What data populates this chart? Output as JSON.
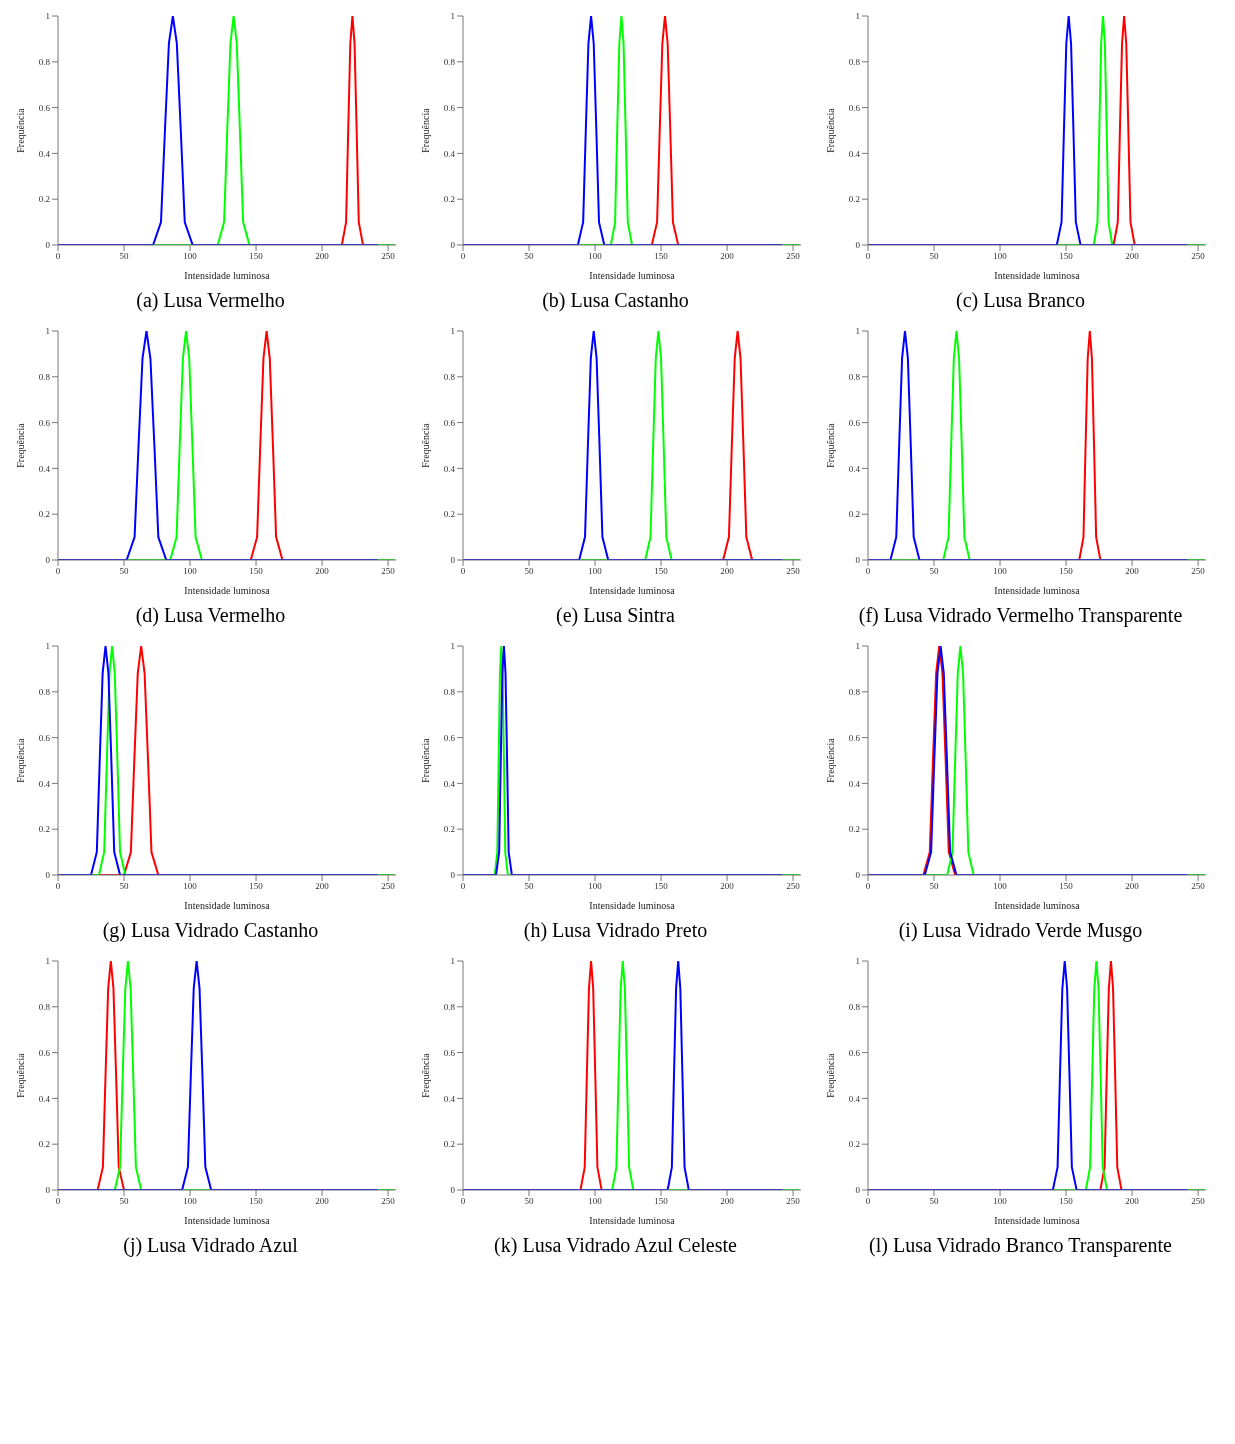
{
  "chart_data": [
    {
      "type": "line",
      "title": "(a) Lusa Vermelho",
      "xlabel": "Intensidade luminosa",
      "ylabel": "Frequência",
      "xlim": [
        0,
        256
      ],
      "xticks": [
        0,
        50,
        100,
        150,
        200,
        250
      ],
      "ylim": [
        0,
        1
      ],
      "yticks": [
        0,
        0.2,
        0.4,
        0.6,
        0.8,
        1
      ],
      "grid": false,
      "legend": false,
      "marker": "none",
      "line_style": "solid",
      "series": [
        {
          "color": "#ff0000",
          "x": [
            0,
            215,
            218.2,
            219.8,
            221.4,
            223,
            224.6,
            226.2,
            227.8,
            231,
            242
          ],
          "values": [
            0,
            0,
            0.1,
            0.5,
            0.88,
            1,
            0.88,
            0.5,
            0.1,
            0,
            0
          ]
        },
        {
          "color": "#00ff00",
          "x": [
            0,
            121,
            125.8,
            128.2,
            130.6,
            133,
            135.4,
            137.8,
            140.2,
            145,
            255
          ],
          "values": [
            0,
            0,
            0.1,
            0.5,
            0.88,
            1,
            0.88,
            0.5,
            0.1,
            0,
            0
          ]
        },
        {
          "color": "#0000ff",
          "x": [
            0,
            72,
            78,
            81,
            84,
            87,
            90,
            93,
            96,
            102,
            242
          ],
          "values": [
            0,
            0,
            0.1,
            0.5,
            0.88,
            1,
            0.88,
            0.5,
            0.1,
            0,
            0
          ]
        }
      ]
    },
    {
      "type": "line",
      "title": "(b) Lusa Castanho",
      "xlabel": "Intensidade luminosa",
      "ylabel": "Frequência",
      "xlim": [
        0,
        256
      ],
      "xticks": [
        0,
        50,
        100,
        150,
        200,
        250
      ],
      "ylim": [
        0,
        1
      ],
      "yticks": [
        0,
        0.2,
        0.4,
        0.6,
        0.8,
        1
      ],
      "grid": false,
      "legend": false,
      "marker": "none",
      "line_style": "solid",
      "series": [
        {
          "color": "#ff0000",
          "x": [
            0,
            143,
            147,
            149,
            151,
            153,
            155,
            157,
            159,
            163,
            242
          ],
          "values": [
            0,
            0,
            0.1,
            0.5,
            0.88,
            1,
            0.88,
            0.5,
            0.1,
            0,
            0
          ]
        },
        {
          "color": "#00ff00",
          "x": [
            0,
            112,
            115.2,
            116.8,
            118.4,
            120,
            121.6,
            123.2,
            124.8,
            128,
            255
          ],
          "values": [
            0,
            0,
            0.1,
            0.5,
            0.88,
            1,
            0.88,
            0.5,
            0.1,
            0,
            0
          ]
        },
        {
          "color": "#0000ff",
          "x": [
            0,
            87,
            91,
            93,
            95,
            97,
            99,
            101,
            103,
            107,
            242
          ],
          "values": [
            0,
            0,
            0.1,
            0.5,
            0.88,
            1,
            0.88,
            0.5,
            0.1,
            0,
            0
          ]
        }
      ]
    },
    {
      "type": "line",
      "title": "(c) Lusa Branco",
      "xlabel": "Intensidade luminosa",
      "ylabel": "Frequência",
      "xlim": [
        0,
        256
      ],
      "xticks": [
        0,
        50,
        100,
        150,
        200,
        250
      ],
      "ylim": [
        0,
        1
      ],
      "yticks": [
        0,
        0.2,
        0.4,
        0.6,
        0.8,
        1
      ],
      "grid": false,
      "legend": false,
      "marker": "none",
      "line_style": "solid",
      "series": [
        {
          "color": "#ff0000",
          "x": [
            0,
            186,
            189.2,
            190.8,
            192.4,
            194,
            195.6,
            197.2,
            198.8,
            202,
            242
          ],
          "values": [
            0,
            0,
            0.1,
            0.5,
            0.88,
            1,
            0.88,
            0.5,
            0.1,
            0,
            0
          ]
        },
        {
          "color": "#00ff00",
          "x": [
            0,
            171,
            173.8,
            175.2,
            176.6,
            178,
            179.4,
            180.8,
            182.2,
            185,
            255
          ],
          "values": [
            0,
            0,
            0.1,
            0.5,
            0.88,
            1,
            0.88,
            0.5,
            0.1,
            0,
            0
          ]
        },
        {
          "color": "#0000ff",
          "x": [
            0,
            143,
            146.6,
            148.4,
            150.2,
            152,
            153.8,
            155.6,
            157.4,
            161,
            242
          ],
          "values": [
            0,
            0,
            0.1,
            0.5,
            0.88,
            1,
            0.88,
            0.5,
            0.1,
            0,
            0
          ]
        }
      ]
    },
    {
      "type": "line",
      "title": "(d) Lusa Vermelho",
      "xlabel": "Intensidade luminosa",
      "ylabel": "Frequência",
      "xlim": [
        0,
        256
      ],
      "xticks": [
        0,
        50,
        100,
        150,
        200,
        250
      ],
      "ylim": [
        0,
        1
      ],
      "yticks": [
        0,
        0.2,
        0.4,
        0.6,
        0.8,
        1
      ],
      "grid": false,
      "legend": false,
      "marker": "none",
      "line_style": "solid",
      "series": [
        {
          "color": "#ff0000",
          "x": [
            0,
            146,
            150.8,
            153.2,
            155.6,
            158,
            160.4,
            162.8,
            165.2,
            170,
            242
          ],
          "values": [
            0,
            0,
            0.1,
            0.5,
            0.88,
            1,
            0.88,
            0.5,
            0.1,
            0,
            0
          ]
        },
        {
          "color": "#00ff00",
          "x": [
            0,
            85,
            89.8,
            92.2,
            94.6,
            97,
            99.4,
            101.8,
            104.2,
            109,
            255
          ],
          "values": [
            0,
            0,
            0.1,
            0.5,
            0.88,
            1,
            0.88,
            0.5,
            0.1,
            0,
            0
          ]
        },
        {
          "color": "#0000ff",
          "x": [
            0,
            52,
            58,
            61,
            64,
            67,
            70,
            73,
            76,
            82,
            242
          ],
          "values": [
            0,
            0,
            0.1,
            0.5,
            0.88,
            1,
            0.88,
            0.5,
            0.1,
            0,
            0
          ]
        }
      ]
    },
    {
      "type": "line",
      "title": "(e) Lusa Sintra",
      "xlabel": "Intensidade luminosa",
      "ylabel": "Frequência",
      "xlim": [
        0,
        256
      ],
      "xticks": [
        0,
        50,
        100,
        150,
        200,
        250
      ],
      "ylim": [
        0,
        1
      ],
      "yticks": [
        0,
        0.2,
        0.4,
        0.6,
        0.8,
        1
      ],
      "grid": false,
      "legend": false,
      "marker": "none",
      "line_style": "solid",
      "series": [
        {
          "color": "#ff0000",
          "x": [
            0,
            197,
            201.4,
            203.6,
            205.8,
            208,
            210.2,
            212.4,
            214.6,
            219,
            242
          ],
          "values": [
            0,
            0,
            0.1,
            0.5,
            0.88,
            1,
            0.88,
            0.5,
            0.1,
            0,
            0
          ]
        },
        {
          "color": "#00ff00",
          "x": [
            0,
            138,
            142,
            144,
            146,
            148,
            150,
            152,
            154,
            158,
            255
          ],
          "values": [
            0,
            0,
            0.1,
            0.5,
            0.88,
            1,
            0.88,
            0.5,
            0.1,
            0,
            0
          ]
        },
        {
          "color": "#0000ff",
          "x": [
            0,
            88,
            92.4,
            94.6,
            96.8,
            99,
            101.2,
            103.4,
            105.6,
            110,
            242
          ],
          "values": [
            0,
            0,
            0.1,
            0.5,
            0.88,
            1,
            0.88,
            0.5,
            0.1,
            0,
            0
          ]
        }
      ]
    },
    {
      "type": "line",
      "title": "(f) Lusa Vidrado Vermelho Transparente",
      "xlabel": "Intensidade luminosa",
      "ylabel": "Frequência",
      "xlim": [
        0,
        256
      ],
      "xticks": [
        0,
        50,
        100,
        150,
        200,
        250
      ],
      "ylim": [
        0,
        1
      ],
      "yticks": [
        0,
        0.2,
        0.4,
        0.6,
        0.8,
        1
      ],
      "grid": false,
      "legend": false,
      "marker": "none",
      "line_style": "solid",
      "series": [
        {
          "color": "#ff0000",
          "x": [
            0,
            160,
            163.2,
            164.8,
            166.4,
            168,
            169.6,
            171.2,
            172.8,
            176,
            242
          ],
          "values": [
            0,
            0,
            0.1,
            0.5,
            0.88,
            1,
            0.88,
            0.5,
            0.1,
            0,
            0
          ]
        },
        {
          "color": "#00ff00",
          "x": [
            0,
            57,
            61,
            63,
            65,
            67,
            69,
            71,
            73,
            77,
            255
          ],
          "values": [
            0,
            0,
            0.1,
            0.5,
            0.88,
            1,
            0.88,
            0.5,
            0.1,
            0,
            0
          ]
        },
        {
          "color": "#0000ff",
          "x": [
            0,
            17,
            21.4,
            23.6,
            25.8,
            28,
            30.2,
            32.4,
            34.6,
            39,
            242
          ],
          "values": [
            0,
            0,
            0.1,
            0.5,
            0.88,
            1,
            0.88,
            0.5,
            0.1,
            0,
            0
          ]
        }
      ]
    },
    {
      "type": "line",
      "title": "(g) Lusa Vidrado Castanho",
      "xlabel": "Intensidade luminosa",
      "ylabel": "Frequência",
      "xlim": [
        0,
        256
      ],
      "xticks": [
        0,
        50,
        100,
        150,
        200,
        250
      ],
      "ylim": [
        0,
        1
      ],
      "yticks": [
        0,
        0.2,
        0.4,
        0.6,
        0.8,
        1
      ],
      "grid": false,
      "legend": false,
      "marker": "none",
      "line_style": "solid",
      "series": [
        {
          "color": "#ff0000",
          "x": [
            0,
            50,
            55.2,
            57.8,
            60.4,
            63,
            65.6,
            68.2,
            70.8,
            76,
            242
          ],
          "values": [
            0,
            0,
            0.1,
            0.5,
            0.88,
            1,
            0.88,
            0.5,
            0.1,
            0,
            0
          ]
        },
        {
          "color": "#00ff00",
          "x": [
            0,
            31,
            35,
            37,
            39,
            41,
            43,
            45,
            47,
            51,
            255
          ],
          "values": [
            0,
            0,
            0.1,
            0.5,
            0.88,
            1,
            0.88,
            0.5,
            0.1,
            0,
            0
          ]
        },
        {
          "color": "#0000ff",
          "x": [
            0,
            25,
            29.4,
            31.6,
            33.8,
            36,
            38.2,
            40.4,
            42.6,
            47,
            242
          ],
          "values": [
            0,
            0,
            0.1,
            0.5,
            0.88,
            1,
            0.88,
            0.5,
            0.1,
            0,
            0
          ]
        }
      ]
    },
    {
      "type": "line",
      "title": "(h) Lusa Vidrado Preto",
      "xlabel": "Intensidade luminosa",
      "ylabel": "Frequência",
      "xlim": [
        0,
        256
      ],
      "xticks": [
        0,
        50,
        100,
        150,
        200,
        250
      ],
      "ylim": [
        0,
        1
      ],
      "yticks": [
        0,
        0.2,
        0.4,
        0.6,
        0.8,
        1
      ],
      "grid": false,
      "legend": false,
      "marker": "none",
      "line_style": "solid",
      "series": [
        {
          "color": "#00ff00",
          "x": [
            0,
            24,
            26,
            27,
            28,
            29,
            30,
            31,
            32,
            34,
            255
          ],
          "values": [
            0,
            0,
            0.1,
            0.5,
            0.88,
            1,
            0.88,
            0.5,
            0.1,
            0,
            0
          ]
        },
        {
          "color": "#0000ff",
          "x": [
            0,
            25,
            27.4,
            28.6,
            29.8,
            31,
            32.2,
            33.4,
            34.6,
            37,
            242
          ],
          "values": [
            0,
            0,
            0.1,
            0.5,
            0.88,
            1,
            0.88,
            0.5,
            0.1,
            0,
            0
          ]
        }
      ]
    },
    {
      "type": "line",
      "title": "(i) Lusa Vidrado Verde Musgo",
      "xlabel": "Intensidade luminosa",
      "ylabel": "Frequência",
      "xlim": [
        0,
        256
      ],
      "xticks": [
        0,
        50,
        100,
        150,
        200,
        250
      ],
      "ylim": [
        0,
        1
      ],
      "yticks": [
        0,
        0.2,
        0.4,
        0.6,
        0.8,
        1
      ],
      "grid": false,
      "legend": false,
      "marker": "none",
      "line_style": "solid",
      "series": [
        {
          "color": "#ff0000",
          "x": [
            0,
            42,
            46.8,
            49.2,
            51.6,
            54,
            56.4,
            58.8,
            61.2,
            66,
            242
          ],
          "values": [
            0,
            0,
            0.1,
            0.5,
            0.88,
            1,
            0.88,
            0.5,
            0.1,
            0,
            0
          ]
        },
        {
          "color": "#00ff00",
          "x": [
            0,
            60,
            64,
            66,
            68,
            70,
            72,
            74,
            76,
            80,
            255
          ],
          "values": [
            0,
            0,
            0.1,
            0.5,
            0.88,
            1,
            0.88,
            0.5,
            0.1,
            0,
            0
          ]
        },
        {
          "color": "#0000ff",
          "x": [
            0,
            43,
            47.8,
            50.2,
            52.6,
            55,
            57.4,
            59.8,
            62.2,
            67,
            242
          ],
          "values": [
            0,
            0,
            0.1,
            0.5,
            0.88,
            1,
            0.88,
            0.5,
            0.1,
            0,
            0
          ]
        }
      ]
    },
    {
      "type": "line",
      "title": "(j) Lusa Vidrado Azul",
      "xlabel": "Intensidade luminosa",
      "ylabel": "Frequência",
      "xlim": [
        0,
        256
      ],
      "xticks": [
        0,
        50,
        100,
        150,
        200,
        250
      ],
      "ylim": [
        0,
        1
      ],
      "yticks": [
        0,
        0.2,
        0.4,
        0.6,
        0.8,
        1
      ],
      "grid": false,
      "legend": false,
      "marker": "none",
      "line_style": "solid",
      "series": [
        {
          "color": "#ff0000",
          "x": [
            0,
            30,
            34,
            36,
            38,
            40,
            42,
            44,
            46,
            50,
            242
          ],
          "values": [
            0,
            0,
            0.1,
            0.5,
            0.88,
            1,
            0.88,
            0.5,
            0.1,
            0,
            0
          ]
        },
        {
          "color": "#00ff00",
          "x": [
            0,
            43,
            47,
            49,
            51,
            53,
            55,
            57,
            59,
            63,
            255
          ],
          "values": [
            0,
            0,
            0.1,
            0.5,
            0.88,
            1,
            0.88,
            0.5,
            0.1,
            0,
            0
          ]
        },
        {
          "color": "#0000ff",
          "x": [
            0,
            94,
            98.4,
            100.6,
            102.8,
            105,
            107.2,
            109.4,
            111.6,
            116,
            242
          ],
          "values": [
            0,
            0,
            0.1,
            0.5,
            0.88,
            1,
            0.88,
            0.5,
            0.1,
            0,
            0
          ]
        }
      ]
    },
    {
      "type": "line",
      "title": "(k) Lusa Vidrado Azul Celeste",
      "xlabel": "Intensidade luminosa",
      "ylabel": "Frequência",
      "xlim": [
        0,
        256
      ],
      "xticks": [
        0,
        50,
        100,
        150,
        200,
        250
      ],
      "ylim": [
        0,
        1
      ],
      "yticks": [
        0,
        0.2,
        0.4,
        0.6,
        0.8,
        1
      ],
      "grid": false,
      "legend": false,
      "marker": "none",
      "line_style": "solid",
      "series": [
        {
          "color": "#ff0000",
          "x": [
            0,
            89,
            92.2,
            93.8,
            95.4,
            97,
            98.6,
            100.2,
            101.8,
            105,
            242
          ],
          "values": [
            0,
            0,
            0.1,
            0.5,
            0.88,
            1,
            0.88,
            0.5,
            0.1,
            0,
            0
          ]
        },
        {
          "color": "#00ff00",
          "x": [
            0,
            113,
            116.2,
            117.8,
            119.4,
            121,
            122.6,
            124.2,
            125.8,
            129,
            255
          ],
          "values": [
            0,
            0,
            0.1,
            0.5,
            0.88,
            1,
            0.88,
            0.5,
            0.1,
            0,
            0
          ]
        },
        {
          "color": "#0000ff",
          "x": [
            0,
            155,
            158.2,
            159.8,
            161.4,
            163,
            164.6,
            166.2,
            167.8,
            171,
            242
          ],
          "values": [
            0,
            0,
            0.1,
            0.5,
            0.88,
            1,
            0.88,
            0.5,
            0.1,
            0,
            0
          ]
        }
      ]
    },
    {
      "type": "line",
      "title": "(l) Lusa Vidrado Branco Transparente",
      "xlabel": "Intensidade luminosa",
      "ylabel": "Frequência",
      "xlim": [
        0,
        256
      ],
      "xticks": [
        0,
        50,
        100,
        150,
        200,
        250
      ],
      "ylim": [
        0,
        1
      ],
      "yticks": [
        0,
        0.2,
        0.4,
        0.6,
        0.8,
        1
      ],
      "grid": false,
      "legend": false,
      "marker": "none",
      "line_style": "solid",
      "series": [
        {
          "color": "#ff0000",
          "x": [
            0,
            176,
            179.2,
            180.8,
            182.4,
            184,
            185.6,
            187.2,
            188.8,
            192,
            242
          ],
          "values": [
            0,
            0,
            0.1,
            0.5,
            0.88,
            1,
            0.88,
            0.5,
            0.1,
            0,
            0
          ]
        },
        {
          "color": "#00ff00",
          "x": [
            0,
            165,
            168.2,
            169.8,
            171.4,
            173,
            174.6,
            176.2,
            177.8,
            181,
            255
          ],
          "values": [
            0,
            0,
            0.1,
            0.5,
            0.88,
            1,
            0.88,
            0.5,
            0.1,
            0,
            0
          ]
        },
        {
          "color": "#0000ff",
          "x": [
            0,
            140,
            143.6,
            145.4,
            147.2,
            149,
            150.8,
            152.6,
            154.4,
            158,
            242
          ],
          "values": [
            0,
            0,
            0.1,
            0.5,
            0.88,
            1,
            0.88,
            0.5,
            0.1,
            0,
            0
          ]
        }
      ]
    }
  ]
}
